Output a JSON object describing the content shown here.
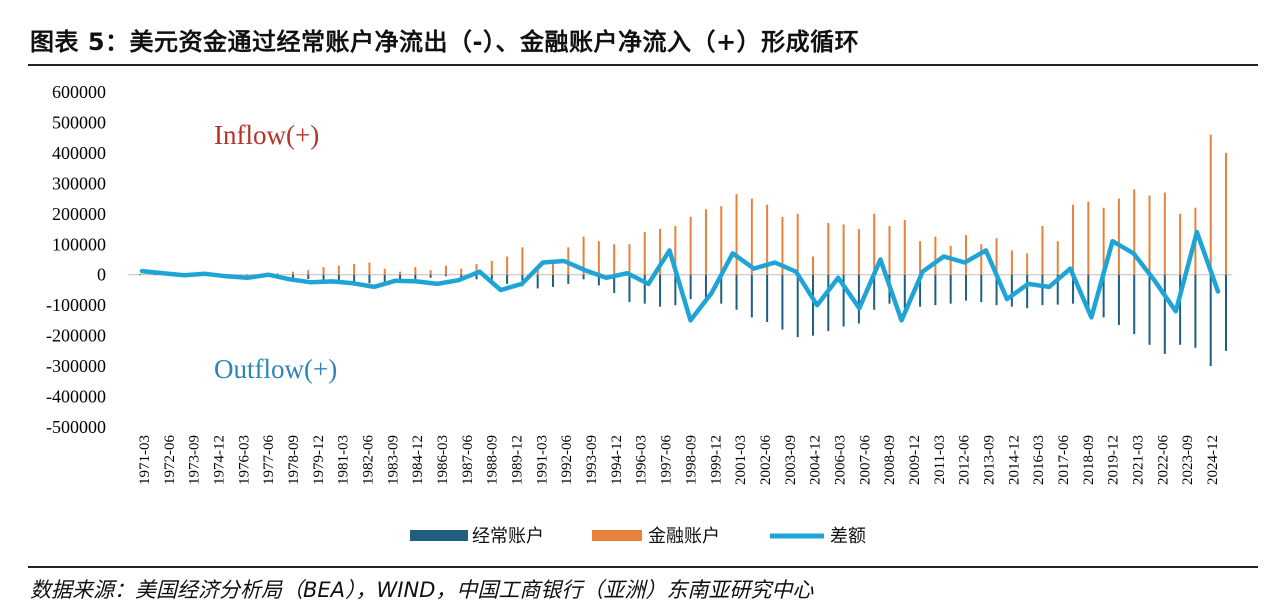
{
  "header": {
    "title": "图表 5：美元资金通过经常账户净流出（-）、金融账户净流入（+）形成循环"
  },
  "footer": {
    "source": "数据来源：美国经济分析局（BEA），WIND，中国工商银行（亚洲）东南亚研究中心"
  },
  "colors": {
    "current_account": "#1f5f80",
    "financial_account": "#e8823b",
    "difference": "#1fa4d6",
    "inflow_label": "#b5322a",
    "outflow_label": "#2a86b8"
  },
  "chart_data": {
    "type": "bar",
    "ylim": [
      -500000,
      600000
    ],
    "yticks": [
      600000,
      500000,
      400000,
      300000,
      200000,
      100000,
      0,
      -100000,
      -200000,
      -300000,
      -400000,
      -500000
    ],
    "xticks": [
      "1971-03",
      "1972-06",
      "1973-09",
      "1974-12",
      "1976-03",
      "1977-06",
      "1978-09",
      "1979-12",
      "1981-03",
      "1982-06",
      "1983-09",
      "1984-12",
      "1986-03",
      "1987-06",
      "1988-09",
      "1989-12",
      "1991-03",
      "1992-06",
      "1993-09",
      "1994-12",
      "1996-03",
      "1997-06",
      "1998-09",
      "1999-12",
      "2001-03",
      "2002-06",
      "2003-09",
      "2004-12",
      "2006-03",
      "2007-06",
      "2008-09",
      "2009-12",
      "2011-03",
      "2012-06",
      "2013-09",
      "2014-12",
      "2016-03",
      "2017-06",
      "2018-09",
      "2019-12",
      "2021-03",
      "2022-06",
      "2023-09",
      "2024-12"
    ],
    "annotations": {
      "inflow": "Inflow(+)",
      "outflow": "Outflow(+)"
    },
    "series": [
      {
        "name": "经常账户",
        "kind": "bar",
        "values": [
          2000,
          1000,
          0,
          -2000,
          -3000,
          -5000,
          -6000,
          -8000,
          -9000,
          -10000,
          -12000,
          -14000,
          -20000,
          -25000,
          -30000,
          -28000,
          -24000,
          -20000,
          -15000,
          -10000,
          -5000,
          -8000,
          -15000,
          -22000,
          -30000,
          -38000,
          -45000,
          -40000,
          -30000,
          -15000,
          -35000,
          -60000,
          -90000,
          -95000,
          -105000,
          -100000,
          -80000,
          -75000,
          -95000,
          -115000,
          -140000,
          -155000,
          -180000,
          -205000,
          -200000,
          -185000,
          -170000,
          -160000,
          -115000,
          -95000,
          -110000,
          -105000,
          -100000,
          -95000,
          -85000,
          -90000,
          -100000,
          -105000,
          -110000,
          -100000,
          -98000,
          -95000,
          -120000,
          -140000,
          -165000,
          -195000,
          -230000,
          -260000,
          -230000,
          -240000,
          -300000,
          -250000
        ]
      },
      {
        "name": "金融账户",
        "kind": "bar",
        "values": [
          0,
          0,
          0,
          0,
          0,
          0,
          0,
          0,
          0,
          5000,
          10000,
          15000,
          25000,
          30000,
          35000,
          40000,
          20000,
          10000,
          25000,
          15000,
          30000,
          20000,
          35000,
          45000,
          60000,
          90000,
          20000,
          40000,
          90000,
          125000,
          110000,
          100000,
          100000,
          140000,
          150000,
          160000,
          190000,
          215000,
          225000,
          265000,
          250000,
          230000,
          190000,
          200000,
          60000,
          170000,
          165000,
          150000,
          200000,
          160000,
          180000,
          110000,
          125000,
          95000,
          130000,
          100000,
          120000,
          80000,
          70000,
          160000,
          110000,
          230000,
          240000,
          220000,
          250000,
          280000,
          260000,
          270000,
          200000,
          220000,
          460000,
          400000
        ]
      },
      {
        "name": "差额",
        "kind": "line",
        "values": [
          12000,
          5000,
          -2000,
          3000,
          -5000,
          -10000,
          0,
          -15000,
          -25000,
          -22000,
          -28000,
          -40000,
          -20000,
          -22000,
          -30000,
          -18000,
          10000,
          -50000,
          -30000,
          40000,
          45000,
          15000,
          -10000,
          5000,
          -30000,
          80000,
          -150000,
          -60000,
          70000,
          20000,
          40000,
          10000,
          -100000,
          -10000,
          -110000,
          50000,
          -150000,
          10000,
          60000,
          40000,
          80000,
          -80000,
          -30000,
          -40000,
          20000,
          -140000,
          110000,
          70000,
          -20000,
          -120000,
          140000,
          -55000
        ]
      }
    ]
  },
  "legend": {
    "items": [
      "经常账户",
      "金融账户",
      "差额"
    ]
  }
}
